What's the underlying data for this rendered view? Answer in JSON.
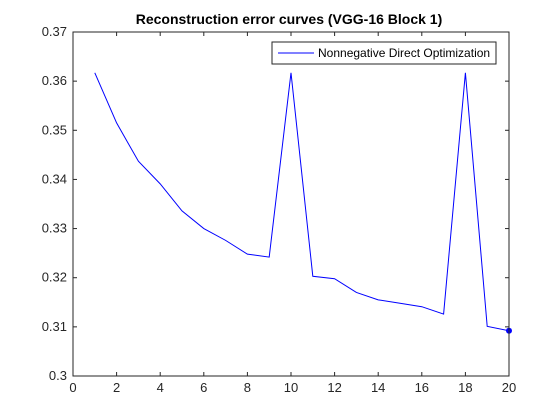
{
  "chart_data": {
    "type": "line",
    "title": "Reconstruction error curves (VGG-16 Block 1)",
    "xlabel": "",
    "ylabel": "",
    "xlim": [
      0,
      20
    ],
    "ylim": [
      0.3,
      0.37
    ],
    "x_ticks": [
      "0",
      "2",
      "4",
      "6",
      "8",
      "10",
      "12",
      "14",
      "16",
      "18",
      "20"
    ],
    "y_ticks": [
      "0.3",
      "0.31",
      "0.32",
      "0.33",
      "0.34",
      "0.35",
      "0.36",
      "0.37"
    ],
    "grid": false,
    "legend_position": "top-right",
    "series": [
      {
        "name": "Nonnegative Direct Optimization",
        "color": "#0000ff",
        "x": [
          1,
          2,
          3,
          4,
          5,
          6,
          7,
          8,
          9,
          10,
          11,
          12,
          13,
          14,
          15,
          16,
          17,
          18,
          19,
          20
        ],
        "y": [
          0.3617,
          0.3515,
          0.3437,
          0.3391,
          0.3336,
          0.33,
          0.3276,
          0.3248,
          0.3242,
          0.3617,
          0.3203,
          0.3198,
          0.317,
          0.3155,
          0.3148,
          0.3141,
          0.3126,
          0.3617,
          0.3101,
          0.3092
        ],
        "end_marker": true
      }
    ]
  }
}
